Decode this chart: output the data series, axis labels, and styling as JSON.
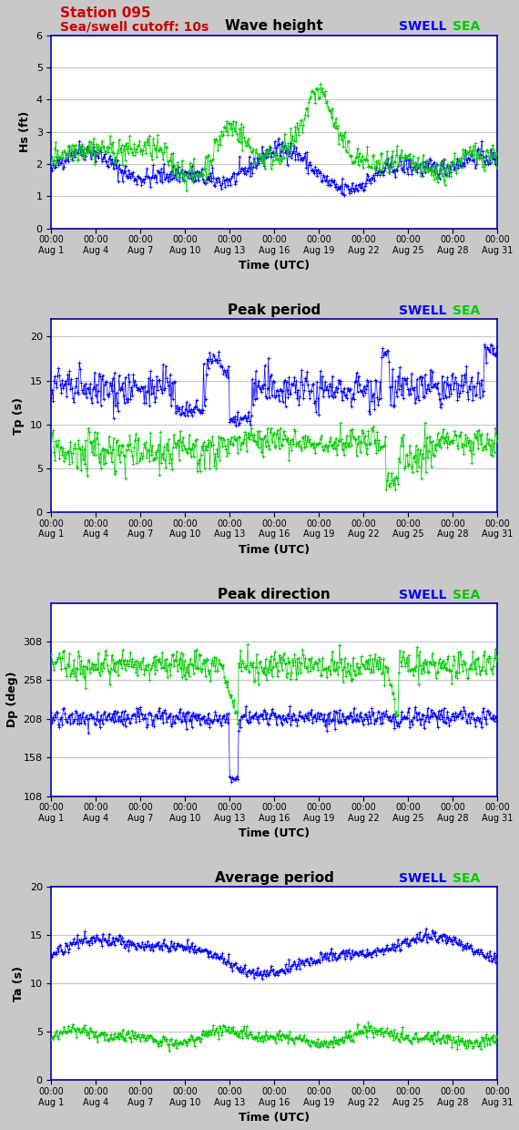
{
  "title_main": "Station 095",
  "subtitle_main": "Sea/swell cutoff: 10s",
  "title_color": "#cc0000",
  "swell_color": "#0000ff",
  "sea_color": "#00cc00",
  "bg_color": "#c8c8c8",
  "plot_bg": "#ffffff",
  "border_color": "#0000aa",
  "panel1_title": "Wave height",
  "panel1_ylabel": "Hs (ft)",
  "panel1_ylim": [
    0.0,
    6.0
  ],
  "panel1_yticks": [
    0.0,
    1.0,
    2.0,
    3.0,
    4.0,
    5.0,
    6.0
  ],
  "panel2_title": "Peak period",
  "panel2_ylabel": "Tp (s)",
  "panel2_ylim": [
    0,
    22
  ],
  "panel2_yticks": [
    0,
    5,
    10,
    15,
    20
  ],
  "panel3_title": "Peak direction",
  "panel3_ylabel": "Dp (deg)",
  "panel3_ylim": [
    108,
    358
  ],
  "panel3_yticks": [
    108,
    158,
    208,
    258,
    308
  ],
  "panel4_title": "Average period",
  "panel4_ylabel": "Ta (s)",
  "panel4_ylim": [
    0,
    20
  ],
  "panel4_yticks": [
    0,
    5,
    10,
    15,
    20
  ],
  "xlabel": "Time (UTC)",
  "n_points": 496,
  "seed": 42
}
